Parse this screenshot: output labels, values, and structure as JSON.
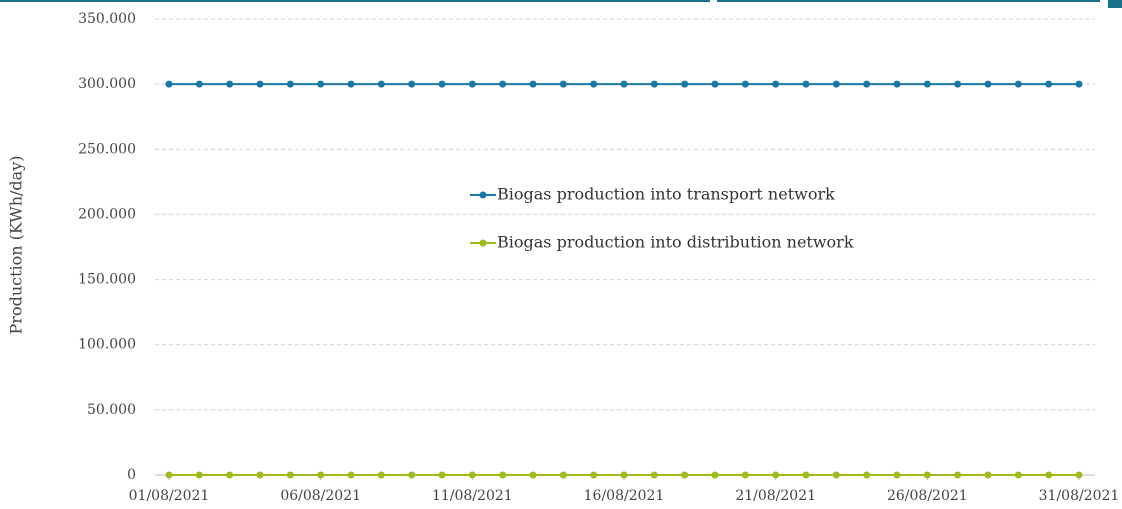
{
  "chart_data": {
    "type": "line",
    "y_axis_label": "Production (KWh/day)",
    "categories": [
      "01/08/2021",
      null,
      null,
      null,
      null,
      "06/08/2021",
      null,
      null,
      null,
      null,
      "11/08/2021",
      null,
      null,
      null,
      null,
      "16/08/2021",
      null,
      null,
      null,
      null,
      "21/08/2021",
      null,
      null,
      null,
      null,
      "26/08/2021",
      null,
      null,
      null,
      null,
      "31/08/2021"
    ],
    "series": [
      {
        "name": "Biogas production into transport network",
        "color": "#1a78a6",
        "values": [
          300000,
          300000,
          300000,
          300000,
          300000,
          300000,
          300000,
          300000,
          300000,
          300000,
          300000,
          300000,
          300000,
          300000,
          300000,
          300000,
          300000,
          300000,
          300000,
          300000,
          300000,
          300000,
          300000,
          300000,
          300000,
          300000,
          300000,
          300000,
          300000,
          300000,
          300000
        ]
      },
      {
        "name": "Biogas production into distribution network",
        "color": "#9cbb1c",
        "values": [
          0,
          0,
          0,
          0,
          0,
          0,
          0,
          0,
          0,
          0,
          0,
          0,
          0,
          0,
          0,
          0,
          0,
          0,
          0,
          0,
          0,
          0,
          0,
          0,
          0,
          0,
          0,
          0,
          0,
          0,
          0
        ]
      }
    ],
    "ylim": [
      0,
      350000
    ],
    "yticks": [
      0,
      {
        "value": 50000,
        "label": "50.000"
      },
      {
        "value": 100000,
        "label": "100.000"
      },
      {
        "value": 150000,
        "label": "150.000"
      },
      {
        "value": 200000,
        "label": "200.000"
      },
      {
        "value": 250000,
        "label": "250.000"
      },
      {
        "value": 300000,
        "label": "300.000"
      },
      {
        "value": 350000,
        "label": "350.000"
      }
    ],
    "grid": true
  }
}
